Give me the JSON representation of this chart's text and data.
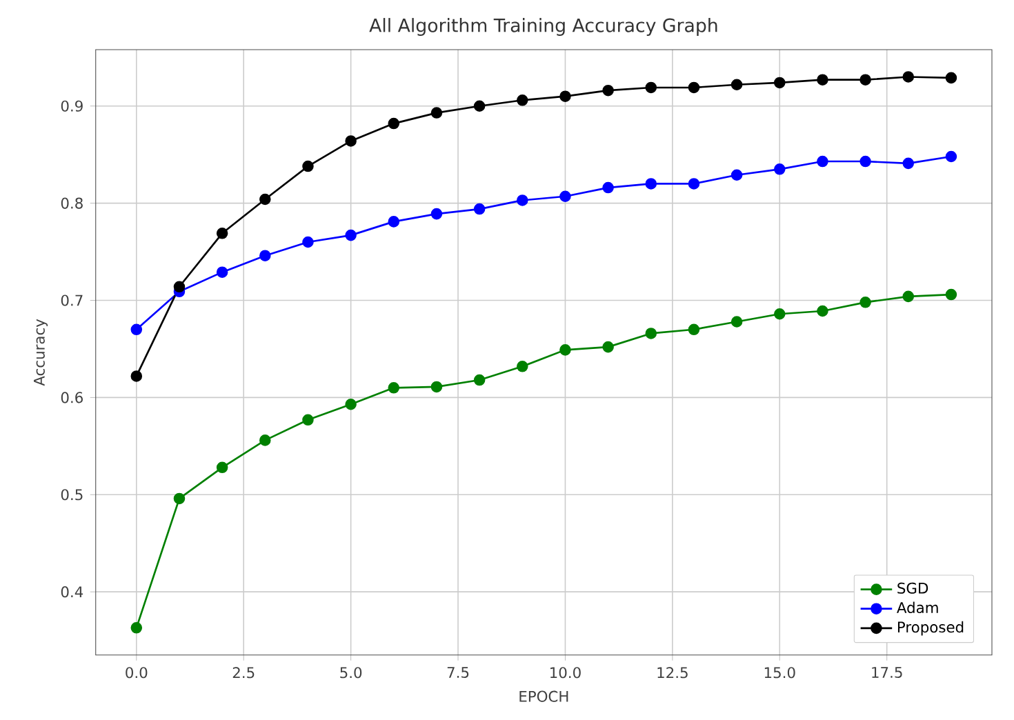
{
  "chart_data": {
    "type": "line",
    "title": "All Algorithm Training Accuracy Graph",
    "xlabel": "EPOCH",
    "ylabel": "Accuracy",
    "x": [
      0,
      1,
      2,
      3,
      4,
      5,
      6,
      7,
      8,
      9,
      10,
      11,
      12,
      13,
      14,
      15,
      16,
      17,
      18,
      19
    ],
    "series": [
      {
        "name": "SGD",
        "color": "#008000",
        "values": [
          0.363,
          0.496,
          0.528,
          0.556,
          0.577,
          0.593,
          0.61,
          0.611,
          0.618,
          0.632,
          0.649,
          0.652,
          0.666,
          0.67,
          0.678,
          0.686,
          0.689,
          0.698,
          0.704,
          0.706
        ]
      },
      {
        "name": "Adam",
        "color": "#0000ff",
        "values": [
          0.67,
          0.709,
          0.729,
          0.746,
          0.76,
          0.767,
          0.781,
          0.789,
          0.794,
          0.803,
          0.807,
          0.816,
          0.82,
          0.82,
          0.829,
          0.835,
          0.843,
          0.843,
          0.841,
          0.848
        ]
      },
      {
        "name": "Proposed",
        "color": "#000000",
        "values": [
          0.622,
          0.714,
          0.769,
          0.804,
          0.838,
          0.864,
          0.882,
          0.893,
          0.9,
          0.906,
          0.91,
          0.916,
          0.919,
          0.919,
          0.922,
          0.924,
          0.927,
          0.927,
          0.93,
          0.929
        ]
      }
    ],
    "xlim": [
      -0.95,
      19.95
    ],
    "ylim": [
      0.335,
      0.958
    ],
    "xticks": [
      {
        "value": 0,
        "label": "0.0"
      },
      {
        "value": 2.5,
        "label": "2.5"
      },
      {
        "value": 5,
        "label": "5.0"
      },
      {
        "value": 7.5,
        "label": "7.5"
      },
      {
        "value": 10,
        "label": "10.0"
      },
      {
        "value": 12.5,
        "label": "12.5"
      },
      {
        "value": 15,
        "label": "15.0"
      },
      {
        "value": 17.5,
        "label": "17.5"
      }
    ],
    "yticks": [
      0.4,
      0.5,
      0.6,
      0.7,
      0.8,
      0.9
    ],
    "grid": true,
    "legend": "bottom right",
    "marker": "circle",
    "line_style": "solid"
  }
}
